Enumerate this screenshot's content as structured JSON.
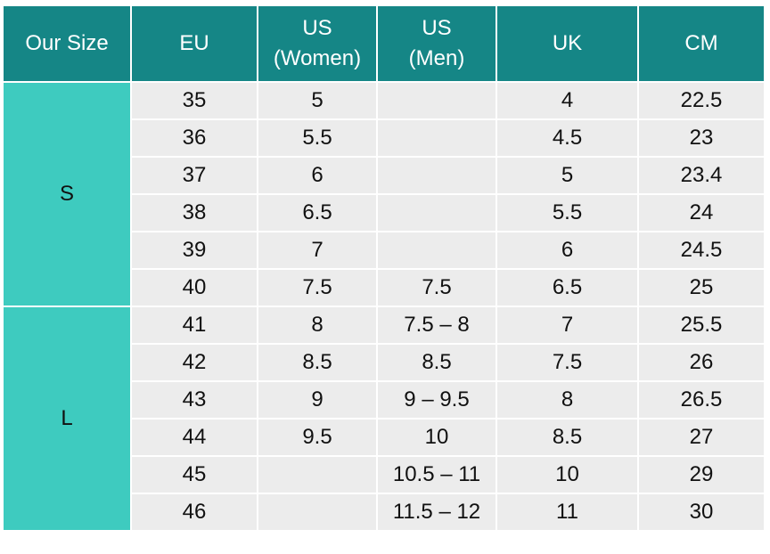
{
  "headers": [
    {
      "key": "our_size",
      "lines": [
        "Our Size"
      ]
    },
    {
      "key": "eu",
      "lines": [
        "EU"
      ]
    },
    {
      "key": "us_women",
      "lines": [
        "US",
        "(Women)"
      ]
    },
    {
      "key": "us_men",
      "lines": [
        "US",
        "(Men)"
      ]
    },
    {
      "key": "uk",
      "lines": [
        "UK"
      ]
    },
    {
      "key": "cm",
      "lines": [
        "CM"
      ]
    }
  ],
  "groups": [
    {
      "label": "S",
      "rows": [
        {
          "eu": "35",
          "us_women": "5",
          "us_men": "",
          "uk": "4",
          "cm": "22.5"
        },
        {
          "eu": "36",
          "us_women": "5.5",
          "us_men": "",
          "uk": "4.5",
          "cm": "23"
        },
        {
          "eu": "37",
          "us_women": "6",
          "us_men": "",
          "uk": "5",
          "cm": "23.4"
        },
        {
          "eu": "38",
          "us_women": "6.5",
          "us_men": "",
          "uk": "5.5",
          "cm": "24"
        },
        {
          "eu": "39",
          "us_women": "7",
          "us_men": "",
          "uk": "6",
          "cm": "24.5"
        },
        {
          "eu": "40",
          "us_women": "7.5",
          "us_men": "7.5",
          "uk": "6.5",
          "cm": "25"
        }
      ]
    },
    {
      "label": "L",
      "rows": [
        {
          "eu": "41",
          "us_women": "8",
          "us_men": "7.5 – 8",
          "uk": "7",
          "cm": "25.5"
        },
        {
          "eu": "42",
          "us_women": "8.5",
          "us_men": "8.5",
          "uk": "7.5",
          "cm": "26"
        },
        {
          "eu": "43",
          "us_women": "9",
          "us_men": "9 – 9.5",
          "uk": "8",
          "cm": "26.5"
        },
        {
          "eu": "44",
          "us_women": "9.5",
          "us_men": "10",
          "uk": "8.5",
          "cm": "27"
        },
        {
          "eu": "45",
          "us_women": "",
          "us_men": "10.5 – 11",
          "uk": "10",
          "cm": "29"
        },
        {
          "eu": "46",
          "us_women": "",
          "us_men": "11.5 – 12",
          "uk": "11",
          "cm": "30"
        }
      ]
    }
  ],
  "colors": {
    "header_bg": "#158686",
    "header_text": "#ffffff",
    "group_bg": "#3ecbbf",
    "cell_bg": "#ececec",
    "grid_line": "#ffffff"
  }
}
